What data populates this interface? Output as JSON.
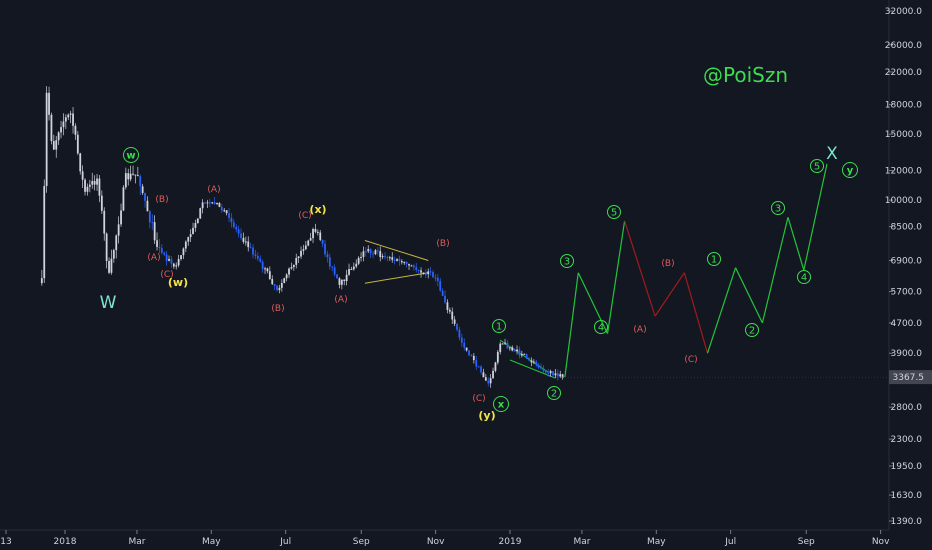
{
  "chart_data": {
    "type": "candlestick",
    "log_scale": true,
    "y_ticks": [
      "32000.0",
      "26000.0",
      "22000.0",
      "18000.0",
      "15000.0",
      "12000.0",
      "10000.0",
      "8500.0",
      "6900.0",
      "5700.0",
      "4700.0",
      "3900.0",
      "3367.5",
      "2800.0",
      "2300.0",
      "1950.0",
      "1630.0",
      "1390.0"
    ],
    "x_ticks": [
      "13",
      "2018",
      "Mar",
      "May",
      "Jul",
      "Sep",
      "Nov",
      "2019",
      "Mar",
      "May",
      "Jul",
      "Sep",
      "Nov"
    ],
    "last_price_label": "3367.5",
    "last_price": 3367.5,
    "watermark": "@PoiSzn",
    "colors": {
      "background": "#131722",
      "candle": "#d1d4dc",
      "trend": "#2962ff",
      "bullish_projection": "#22c53a",
      "bearish_projection": "#a11b1b",
      "triangle_lines": "#c8b83a",
      "red_labels": "#e05c5c",
      "yellow_labels": "#f2e34b",
      "green_labels": "#3ddc4e",
      "cyan_labels": "#7de3d2",
      "price_label_bg": "#434651"
    },
    "wave_labels": [
      {
        "text": "W",
        "color": "cyan"
      },
      {
        "text": "w",
        "color": "green",
        "circled": true
      },
      {
        "text": "(A)",
        "color": "red"
      },
      {
        "text": "(B)",
        "color": "red"
      },
      {
        "text": "(C)",
        "color": "red"
      },
      {
        "text": "(w)",
        "color": "yellow"
      },
      {
        "text": "(A)",
        "color": "red"
      },
      {
        "text": "(B)",
        "color": "red"
      },
      {
        "text": "(C)",
        "color": "red"
      },
      {
        "text": "(x)",
        "color": "yellow"
      },
      {
        "text": "(A)",
        "color": "red"
      },
      {
        "text": "(B)",
        "color": "red"
      },
      {
        "text": "(C)",
        "color": "red"
      },
      {
        "text": "(y)",
        "color": "yellow"
      },
      {
        "text": "x",
        "color": "green",
        "circled": true
      },
      {
        "text": "1",
        "color": "green",
        "circled": true
      },
      {
        "text": "2",
        "color": "green",
        "circled": true
      },
      {
        "text": "3",
        "color": "green",
        "circled": true
      },
      {
        "text": "4",
        "color": "green",
        "circled": true
      },
      {
        "text": "5",
        "color": "green",
        "circled": true
      },
      {
        "text": "(A)",
        "color": "red"
      },
      {
        "text": "(B)",
        "color": "red"
      },
      {
        "text": "(C)",
        "color": "red"
      },
      {
        "text": "1",
        "color": "green",
        "circled": true
      },
      {
        "text": "2",
        "color": "green",
        "circled": true
      },
      {
        "text": "3",
        "color": "green",
        "circled": true
      },
      {
        "text": "4",
        "color": "green",
        "circled": true
      },
      {
        "text": "5",
        "color": "green",
        "circled": true
      },
      {
        "text": "X",
        "color": "cyan"
      },
      {
        "text": "y",
        "color": "green",
        "circled": true
      }
    ],
    "historical_path": [
      [
        "2017-12-13",
        6000
      ],
      [
        "2017-12-17",
        19500
      ],
      [
        "2017-12-22",
        13500
      ],
      [
        "2017-12-28",
        16000
      ],
      [
        "2018-01-06",
        17000
      ],
      [
        "2018-01-17",
        10500
      ],
      [
        "2018-01-28",
        11500
      ],
      [
        "2018-02-06",
        6200
      ],
      [
        "2018-02-20",
        11500
      ],
      [
        "2018-03-02",
        11700
      ],
      [
        "2018-03-18",
        7500
      ],
      [
        "2018-04-01",
        6600
      ],
      [
        "2018-04-24",
        9700
      ],
      [
        "2018-05-05",
        9900
      ],
      [
        "2018-06-01",
        7500
      ],
      [
        "2018-06-24",
        5800
      ],
      [
        "2018-07-05",
        6600
      ],
      [
        "2018-07-25",
        8400
      ],
      [
        "2018-08-14",
        5900
      ],
      [
        "2018-09-04",
        7400
      ],
      [
        "2018-10-31",
        6300
      ],
      [
        "2018-11-22",
        4200
      ],
      [
        "2018-12-15",
        3200
      ],
      [
        "2018-12-24",
        4200
      ],
      [
        "2019-02-06",
        3400
      ],
      [
        "2019-02-15",
        3367.5
      ]
    ],
    "projection_path": [
      [
        "2019-02-15",
        3367.5
      ],
      [
        "2019-02-26",
        6400
      ],
      [
        "2019-03-22",
        4400
      ],
      [
        "2019-04-05",
        8800
      ],
      [
        "2019-04-30",
        4900
      ],
      [
        "2019-05-24",
        6400
      ],
      [
        "2019-06-12",
        3900
      ],
      [
        "2019-07-05",
        6600
      ],
      [
        "2019-07-27",
        4700
      ],
      [
        "2019-08-17",
        9000
      ],
      [
        "2019-08-30",
        6500
      ],
      [
        "2019-09-18",
        12500
      ]
    ],
    "triangle": {
      "upper": [
        [
          "2018-09-04",
          7800
        ],
        [
          "2018-10-26",
          6900
        ]
      ],
      "lower": [
        [
          "2018-09-04",
          6000
        ],
        [
          "2018-10-26",
          6400
        ]
      ]
    }
  }
}
